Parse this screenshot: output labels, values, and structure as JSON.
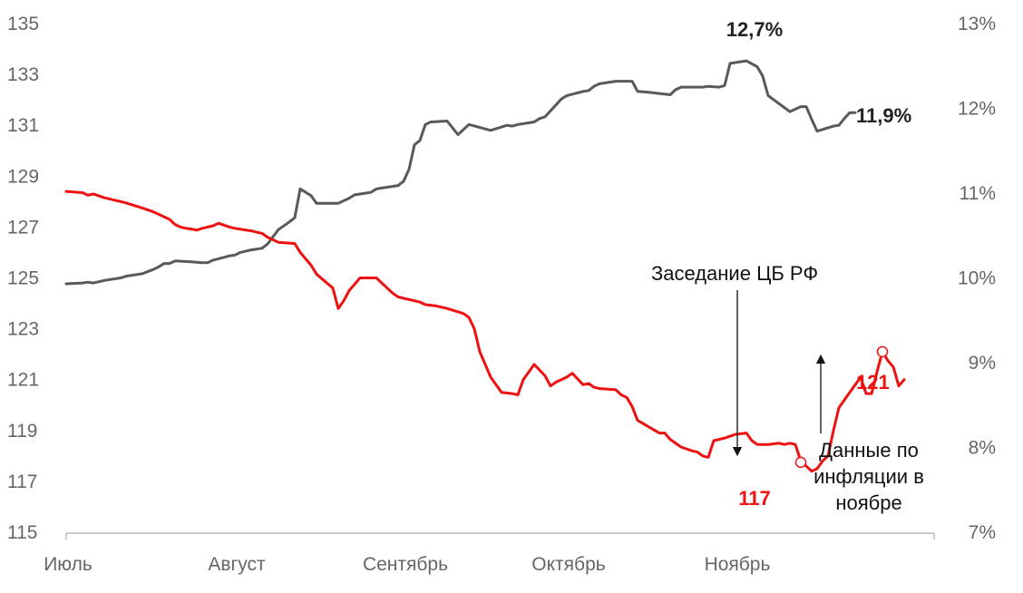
{
  "chart_data": {
    "type": "line",
    "title": "",
    "y_left": {
      "min": 115,
      "max": 135,
      "ticks": [
        "135",
        "133",
        "131",
        "129",
        "127",
        "125",
        "123",
        "121",
        "119",
        "117",
        "115"
      ]
    },
    "y_right": {
      "min": 7,
      "max": 13,
      "ticks": [
        "13%",
        "12%",
        "11%",
        "10%",
        "9%",
        "8%",
        "7%"
      ]
    },
    "x_ticks": [
      {
        "label": "Июль",
        "day": 0
      },
      {
        "label": "Август",
        "day": 31
      },
      {
        "label": "Сентябрь",
        "day": 62
      },
      {
        "label": "Октябрь",
        "day": 92
      },
      {
        "label": "Ноябрь",
        "day": 123
      }
    ],
    "x_range": [
      0,
      153
    ],
    "series": [
      {
        "name": "",
        "axis": "right",
        "color": "#555a5a",
        "points": [
          [
            0,
            9.93
          ],
          [
            3,
            9.94
          ],
          [
            4,
            9.95
          ],
          [
            5,
            9.94
          ],
          [
            7,
            9.97
          ],
          [
            10,
            10.0
          ],
          [
            11,
            10.02
          ],
          [
            14,
            10.05
          ],
          [
            16,
            10.1
          ],
          [
            17,
            10.13
          ],
          [
            18,
            10.17
          ],
          [
            19,
            10.17
          ],
          [
            20,
            10.2
          ],
          [
            23,
            10.19
          ],
          [
            25,
            10.18
          ],
          [
            26,
            10.18
          ],
          [
            27,
            10.21
          ],
          [
            30,
            10.26
          ],
          [
            31,
            10.27
          ],
          [
            32,
            10.3
          ],
          [
            34,
            10.33
          ],
          [
            36,
            10.35
          ],
          [
            37,
            10.4
          ],
          [
            39,
            10.57
          ],
          [
            41,
            10.66
          ],
          [
            42,
            10.71
          ],
          [
            43,
            11.05
          ],
          [
            45,
            10.97
          ],
          [
            46,
            10.88
          ],
          [
            50,
            10.88
          ],
          [
            52,
            10.94
          ],
          [
            53,
            10.98
          ],
          [
            56,
            11.01
          ],
          [
            57,
            11.05
          ],
          [
            58,
            11.06
          ],
          [
            61,
            11.09
          ],
          [
            62,
            11.14
          ],
          [
            63,
            11.28
          ],
          [
            64,
            11.57
          ],
          [
            65,
            11.62
          ],
          [
            66,
            11.81
          ],
          [
            67,
            11.84
          ],
          [
            70,
            11.85
          ],
          [
            72,
            11.69
          ],
          [
            74,
            11.81
          ],
          [
            78,
            11.74
          ],
          [
            79,
            11.76
          ],
          [
            81,
            11.8
          ],
          [
            82,
            11.79
          ],
          [
            83,
            11.81
          ],
          [
            86,
            11.84
          ],
          [
            87,
            11.88
          ],
          [
            88,
            11.9
          ],
          [
            91,
            12.11
          ],
          [
            92,
            12.15
          ],
          [
            95,
            12.2
          ],
          [
            96,
            12.21
          ],
          [
            97,
            12.26
          ],
          [
            98,
            12.29
          ],
          [
            101,
            12.32
          ],
          [
            104,
            12.32
          ],
          [
            105,
            12.2
          ],
          [
            107,
            12.19
          ],
          [
            111,
            12.16
          ],
          [
            112,
            12.22
          ],
          [
            113,
            12.25
          ],
          [
            117,
            12.25
          ],
          [
            118,
            12.26
          ],
          [
            120,
            12.25
          ],
          [
            121,
            12.27
          ],
          [
            122,
            12.53
          ],
          [
            125,
            12.56
          ],
          [
            127,
            12.49
          ],
          [
            128,
            12.38
          ],
          [
            129,
            12.15
          ],
          [
            133,
            11.96
          ],
          [
            134,
            11.99
          ],
          [
            135,
            12.02
          ],
          [
            136,
            12.02
          ],
          [
            137,
            11.87
          ],
          [
            138,
            11.73
          ],
          [
            141,
            11.79
          ],
          [
            142,
            11.8
          ],
          [
            143,
            11.88
          ],
          [
            144,
            11.95
          ],
          [
            145,
            11.95
          ]
        ]
      },
      {
        "name": "",
        "axis": "left",
        "color": "#ee1111",
        "points": [
          [
            0,
            128.4
          ],
          [
            3,
            128.35
          ],
          [
            4,
            128.25
          ],
          [
            5,
            128.3
          ],
          [
            7,
            128.15
          ],
          [
            10,
            128.0
          ],
          [
            11,
            127.95
          ],
          [
            14,
            127.75
          ],
          [
            16,
            127.6
          ],
          [
            17,
            127.5
          ],
          [
            18,
            127.4
          ],
          [
            19,
            127.3
          ],
          [
            20,
            127.1
          ],
          [
            21,
            127.0
          ],
          [
            22,
            126.95
          ],
          [
            23,
            126.92
          ],
          [
            24,
            126.88
          ],
          [
            25,
            126.95
          ],
          [
            27,
            127.05
          ],
          [
            28,
            127.15
          ],
          [
            30,
            127.0
          ],
          [
            31,
            126.95
          ],
          [
            34,
            126.85
          ],
          [
            36,
            126.75
          ],
          [
            37,
            126.6
          ],
          [
            39,
            126.4
          ],
          [
            42,
            126.35
          ],
          [
            43,
            126.0
          ],
          [
            45,
            125.5
          ],
          [
            46,
            125.15
          ],
          [
            49,
            124.6
          ],
          [
            50,
            123.8
          ],
          [
            51,
            124.1
          ],
          [
            52,
            124.5
          ],
          [
            54,
            125.0
          ],
          [
            56,
            125.0
          ],
          [
            57,
            125.0
          ],
          [
            58,
            124.8
          ],
          [
            60,
            124.4
          ],
          [
            61,
            124.25
          ],
          [
            62,
            124.2
          ],
          [
            63,
            124.15
          ],
          [
            64,
            124.1
          ],
          [
            65,
            124.05
          ],
          [
            66,
            123.95
          ],
          [
            68,
            123.9
          ],
          [
            70,
            123.8
          ],
          [
            73,
            123.6
          ],
          [
            74,
            123.45
          ],
          [
            75,
            123.0
          ],
          [
            76,
            122.1
          ],
          [
            78,
            121.1
          ],
          [
            80,
            120.5
          ],
          [
            82,
            120.45
          ],
          [
            83,
            120.4
          ],
          [
            84,
            121.0
          ],
          [
            86,
            121.6
          ],
          [
            88,
            121.15
          ],
          [
            89,
            120.75
          ],
          [
            90,
            120.9
          ],
          [
            92,
            121.1
          ],
          [
            93,
            121.25
          ],
          [
            95,
            120.8
          ],
          [
            96,
            120.85
          ],
          [
            97,
            120.7
          ],
          [
            98,
            120.65
          ],
          [
            101,
            120.6
          ],
          [
            102,
            120.4
          ],
          [
            103,
            120.3
          ],
          [
            104,
            119.95
          ],
          [
            105,
            119.4
          ],
          [
            107,
            119.15
          ],
          [
            109,
            118.9
          ],
          [
            110,
            118.9
          ],
          [
            111,
            118.65
          ],
          [
            113,
            118.35
          ],
          [
            115,
            118.2
          ],
          [
            116,
            118.15
          ],
          [
            117,
            118.0
          ],
          [
            118,
            117.95
          ],
          [
            119,
            118.6
          ],
          [
            121,
            118.7
          ],
          [
            123,
            118.85
          ],
          [
            125,
            118.9
          ],
          [
            126,
            118.6
          ],
          [
            127,
            118.45
          ],
          [
            129,
            118.45
          ],
          [
            131,
            118.5
          ],
          [
            132,
            118.45
          ],
          [
            133,
            118.5
          ],
          [
            134,
            118.45
          ],
          [
            135,
            117.8
          ],
          [
            136,
            117.6
          ],
          [
            137,
            117.4
          ],
          [
            138,
            117.5
          ],
          [
            139,
            117.8
          ],
          [
            140,
            118.0
          ],
          [
            141,
            119.0
          ],
          [
            142,
            119.9
          ],
          [
            144,
            120.5
          ],
          [
            146,
            121.1
          ],
          [
            147,
            120.45
          ],
          [
            148,
            120.45
          ],
          [
            149,
            121.3
          ],
          [
            150,
            122.1
          ],
          [
            151,
            121.75
          ],
          [
            152,
            121.5
          ],
          [
            153,
            120.75
          ],
          [
            154,
            121.0
          ]
        ]
      }
    ],
    "labels": {
      "gray_max": "12,7%",
      "gray_last": "11,9%",
      "red_min": "117",
      "red_last": "121"
    },
    "annotations": {
      "cb_meeting": "Заседание ЦБ РФ",
      "inflation_lines": [
        "Данные по",
        "инфляции в",
        "ноябре"
      ]
    },
    "markers": [
      {
        "series": 1,
        "x": 135,
        "y": 117.75
      },
      {
        "series": 1,
        "x": 150,
        "y": 122.1
      }
    ]
  }
}
